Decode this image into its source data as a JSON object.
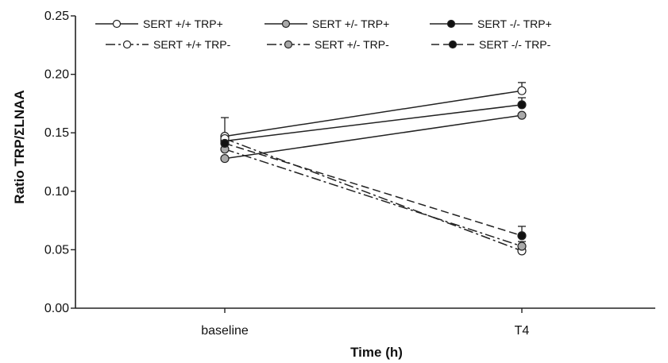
{
  "chart_data": {
    "type": "line",
    "title": "",
    "xlabel": "Time (h)",
    "ylabel": "Ratio TRP/ΣLNAA",
    "categories": [
      "baseline",
      "T4"
    ],
    "ylim": [
      0.0,
      0.25
    ],
    "yticks": [
      "0.00",
      "0.05",
      "0.10",
      "0.15",
      "0.20",
      "0.25"
    ],
    "grid": false,
    "legend_position": "top",
    "series": [
      {
        "name": "SERT +/+ TRP+",
        "values": [
          0.147,
          0.186
        ],
        "errors": [
          0.0,
          0.007
        ],
        "marker_fill": "#ffffff",
        "dash": "solid"
      },
      {
        "name": "SERT +/- TRP+",
        "values": [
          0.128,
          0.165
        ],
        "errors": [
          0.0,
          0.0
        ],
        "marker_fill": "#a9a9a9",
        "dash": "solid"
      },
      {
        "name": "SERT -/- TRP+",
        "values": [
          0.143,
          0.174
        ],
        "errors": [
          0.0,
          0.006
        ],
        "marker_fill": "#111111",
        "dash": "solid"
      },
      {
        "name": "SERT +/+ TRP-",
        "values": [
          0.145,
          0.049
        ],
        "errors": [
          0.0,
          0.0
        ],
        "marker_fill": "#ffffff",
        "dash": "dashdot"
      },
      {
        "name": "SERT +/- TRP-",
        "values": [
          0.136,
          0.053
        ],
        "errors": [
          0.0,
          0.004
        ],
        "marker_fill": "#a9a9a9",
        "dash": "dashdot"
      },
      {
        "name": "SERT -/- TRP-",
        "values": [
          0.141,
          0.062
        ],
        "errors": [
          0.0,
          0.008
        ],
        "marker_fill": "#111111",
        "dash": "dash"
      }
    ],
    "baseline_upper_error": 0.163
  }
}
